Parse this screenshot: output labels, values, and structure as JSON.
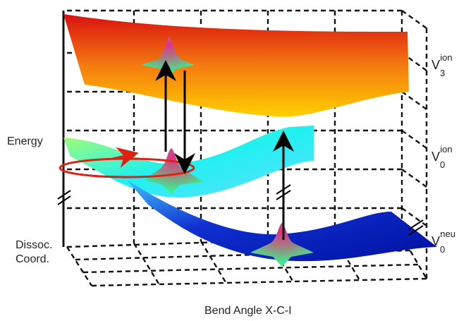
{
  "labels": {
    "energy": "Energy",
    "dissoc": "Dissoc.",
    "coord": "Coord.",
    "bend_angle": "Bend Angle X-C-I"
  },
  "surfaces": [
    {
      "base": "V",
      "sub": "3",
      "sup": "ion"
    },
    {
      "base": "V",
      "sub": "0",
      "sup": "ion"
    },
    {
      "base": "V",
      "sub": "0",
      "sup": "neu"
    }
  ]
}
